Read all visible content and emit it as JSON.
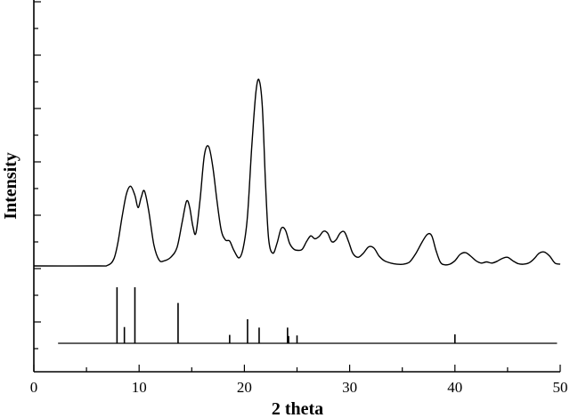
{
  "chart_data": {
    "type": "line",
    "xlabel": "2 theta",
    "ylabel": "Intensity",
    "xlim": [
      0,
      50
    ],
    "ylim": [
      0,
      100
    ],
    "x_ticks": [
      0,
      10,
      20,
      30,
      40,
      50
    ],
    "grid": false,
    "legend": "none",
    "series": [
      {
        "x": [
          0,
          6,
          7,
          7.6,
          8,
          8.4,
          8.8,
          9.2,
          9.6,
          9.9,
          10.2,
          10.5,
          10.9,
          11.4,
          11.9,
          12.4,
          13,
          13.6,
          14.1,
          14.5,
          14.8,
          15.1,
          15.4,
          15.8,
          16.2,
          16.6,
          17,
          17.4,
          17.8,
          18.2,
          18.6,
          19,
          19.5,
          19.9,
          20.3,
          20.7,
          21.1,
          21.4,
          21.7,
          22,
          22.3,
          22.7,
          23.1,
          23.5,
          23.9,
          24.3,
          24.7,
          25.1,
          25.5,
          25.9,
          26.3,
          26.7,
          27.1,
          27.5,
          27.9,
          28.3,
          28.7,
          29.1,
          29.5,
          29.9,
          30.3,
          30.8,
          31.3,
          31.8,
          32.3,
          32.8,
          33.3,
          33.9,
          34.5,
          35.1,
          35.7,
          36.3,
          36.9,
          37.4,
          37.8,
          38.2,
          38.6,
          39,
          39.5,
          40,
          40.5,
          41,
          41.5,
          42,
          42.5,
          43,
          43.5,
          44,
          44.5,
          45,
          45.5,
          46,
          46.5,
          47,
          47.5,
          48,
          48.5,
          49,
          49.5,
          50
        ],
        "y": [
          57.3,
          57.3,
          57.4,
          58.5,
          61.5,
          66,
          69.8,
          71.1,
          69.5,
          67.4,
          69.2,
          70.3,
          67,
          61,
          58.3,
          58.2,
          58.8,
          60.5,
          65,
          68.5,
          67.5,
          64.2,
          63,
          69,
          76.5,
          78,
          74.5,
          68.5,
          63.5,
          61.8,
          61.6,
          60,
          58.7,
          60.5,
          66,
          78,
          87.5,
          89.5,
          85,
          72,
          62,
          59.5,
          61.2,
          63.8,
          63.5,
          61.2,
          60.2,
          60,
          60.2,
          61.5,
          62.5,
          62,
          62.4,
          63.3,
          63,
          61.5,
          61.8,
          63,
          63.2,
          61.5,
          59.5,
          58.8,
          59.5,
          60.6,
          60.4,
          59,
          58.2,
          57.8,
          57.6,
          57.6,
          58,
          59.5,
          61.5,
          62.8,
          62.5,
          60,
          58,
          57.5,
          57.6,
          58.2,
          59.3,
          59.6,
          59,
          58.2,
          57.8,
          58,
          57.8,
          58.1,
          58.6,
          58.8,
          58.2,
          57.7,
          57.6,
          57.8,
          58.5,
          59.5,
          59.7,
          59,
          57.8,
          57.6
        ]
      }
    ],
    "stick_pattern": {
      "baseline_x_range": [
        2.3,
        49.7
      ],
      "x": [
        7.9,
        8.6,
        9.6,
        13.7,
        18.6,
        20.3,
        21.4,
        24.1,
        24.2,
        25.0,
        40.0
      ],
      "intensity": [
        100,
        29,
        100,
        72,
        15,
        43,
        28,
        28,
        13,
        14,
        16
      ]
    }
  }
}
